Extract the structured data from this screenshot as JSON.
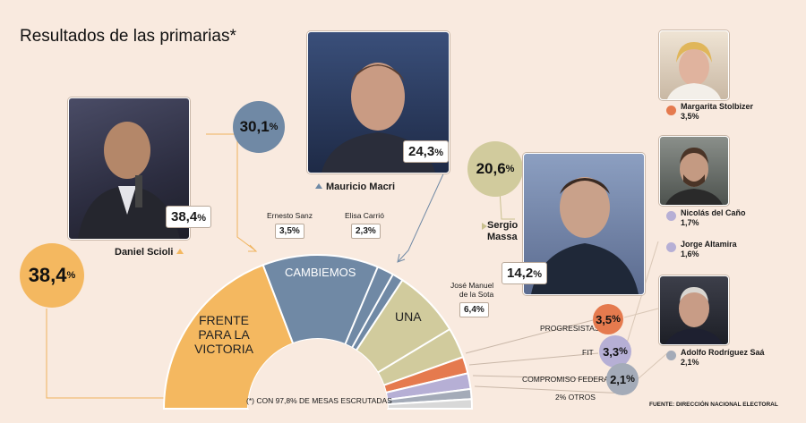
{
  "title": "Resultados de las primarias*",
  "footnote": "(*) CON 97,8% DE MESAS ESCRUTADAS",
  "source": "FUENTE: DIRECCIÓN NACIONAL ELECTORAL",
  "chart_data": {
    "type": "pie",
    "subtype": "semicircle parliament-style",
    "series": [
      {
        "name": "FRENTE PARA LA VICTORIA",
        "value": 38.4,
        "color": "#f4b860"
      },
      {
        "name": "CAMBIEMOS",
        "value": 30.1,
        "color": "#7089a5"
      },
      {
        "name": "UNA",
        "value": 20.6,
        "color": "#d1cb9d"
      },
      {
        "name": "PROGRESISTAS",
        "value": 3.5,
        "color": "#e57a4e"
      },
      {
        "name": "FIT",
        "value": 3.3,
        "color": "#b6afd5"
      },
      {
        "name": "COMPROMISO FEDERAL",
        "value": 2.1,
        "color": "#a4abb8"
      },
      {
        "name": "2% OTROS",
        "value": 2.0,
        "color": "#d8d8d8"
      }
    ],
    "sub_segments": {
      "CAMBIEMOS": [
        {
          "name": "Mauricio Macri",
          "value": 24.3
        },
        {
          "name": "Ernesto Sanz",
          "value": 3.5
        },
        {
          "name": "Elisa Carrió",
          "value": 2.3
        }
      ],
      "UNA": [
        {
          "name": "Sergio Massa",
          "value": 14.2
        },
        {
          "name": "José Manuel de la Sota",
          "value": 6.4
        }
      ]
    }
  },
  "labels": {
    "fpv": "FRENTE PARA LA VICTORIA",
    "cambiemos": "CAMBIEMOS",
    "una": "UNA",
    "progresistas": "PROGRESISTAS",
    "fit": "FIT",
    "compromiso": "COMPROMISO FEDERAL",
    "otros": "2% OTROS"
  },
  "candidates": {
    "scioli": {
      "name": "Daniel Scioli",
      "pct": "38,4",
      "party_pct": "38,4"
    },
    "macri": {
      "name": "Mauricio Macri",
      "pct": "24,3",
      "party_pct": "30,1"
    },
    "massa": {
      "name_line1": "Sergio",
      "name_line2": "Massa",
      "pct": "14,2",
      "party_pct": "20,6"
    },
    "sanz": {
      "name": "Ernesto Sanz",
      "pct": "3,5%"
    },
    "carrio": {
      "name": "Elisa Carrió",
      "pct": "2,3%"
    },
    "delasota": {
      "name_line1": "José Manuel",
      "name_line2": "de la Sota",
      "pct": "6,4%"
    },
    "stolbizer": {
      "name": "Margarita Stolbizer",
      "pct": "3,5%"
    },
    "delcano": {
      "name": "Nicolás del Caño",
      "pct": "1,7%"
    },
    "altamira": {
      "name": "Jorge Altamira",
      "pct": "1,6%"
    },
    "saa": {
      "name": "Adolfo Rodríguez Saá",
      "pct": "2,1%"
    }
  },
  "party_circles": {
    "progresistas": "3,5",
    "fit": "3,3",
    "compromiso": "2,1"
  },
  "pct_sign": "%"
}
